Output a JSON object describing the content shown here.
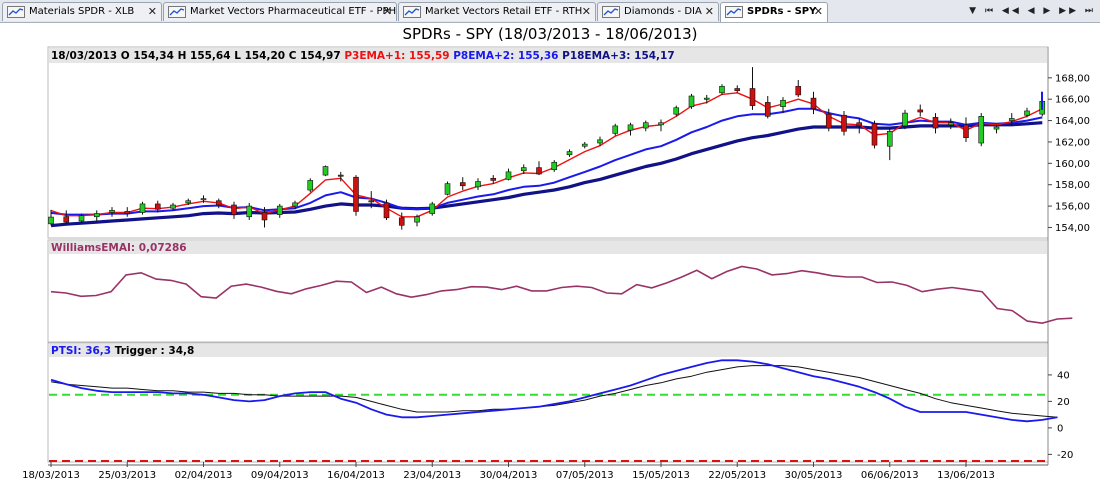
{
  "tabs": [
    {
      "label": "Materials SPDR - XLB",
      "active": false
    },
    {
      "label": "Market Vectors Pharmaceutical ETF - PPH",
      "active": false
    },
    {
      "label": "Market Vectors Retail ETF - RTH",
      "active": false
    },
    {
      "label": "Diamonds - DIA",
      "active": false
    },
    {
      "label": "SPDRs - SPY",
      "active": true
    }
  ],
  "nav_glyphs": "▼ ⏮ ◀◀ ◀ ▶ ▶▶ ⏭",
  "close_glyph": "✕",
  "title": "SPDRs -  SPY     (18/03/2013 - 18/06/2013)",
  "colors": {
    "up": "#22cc22",
    "down": "#cc1111",
    "ema1": "#ee1111",
    "ema2": "#1a1aee",
    "ema3": "#111188",
    "williams": "#993366",
    "ptsi": "#1a1aee",
    "trigger": "#111111",
    "upper_band": "#33dd33",
    "lower_band": "#dd1111",
    "panel_header": "#e6e6e6"
  },
  "chart_data": [
    {
      "type": "candlestick",
      "info": {
        "date": "18/03/2013",
        "o_label": "O :",
        "o_value": "154,34",
        "h_label": "H :",
        "h_value": "155,64",
        "l_label": "L :",
        "l_value": "154,20",
        "c_label": "C :",
        "c_value": "154,97",
        "ema1_label": "P3EMA+1:",
        "ema1_value": "155,59",
        "ema2_label": "P8EMA+2:",
        "ema2_value": "155,36",
        "ema3_label": "P18EMA+3:",
        "ema3_value": "154,17"
      },
      "ylim": [
        153.2,
        169.2
      ],
      "yticks": [
        154,
        156,
        158,
        160,
        162,
        164,
        166,
        168
      ],
      "ytick_labels": [
        "154,00",
        "156,00",
        "158,00",
        "160,00",
        "162,00",
        "164,00",
        "166,00",
        "168,00"
      ],
      "candles": [
        {
          "o": 154.34,
          "h": 155.64,
          "l": 154.2,
          "c": 154.97
        },
        {
          "o": 155.0,
          "h": 155.6,
          "l": 154.3,
          "c": 154.5
        },
        {
          "o": 154.6,
          "h": 155.3,
          "l": 154.4,
          "c": 155.1
        },
        {
          "o": 155.0,
          "h": 155.6,
          "l": 154.6,
          "c": 155.3
        },
        {
          "o": 155.4,
          "h": 155.9,
          "l": 155.0,
          "c": 155.6
        },
        {
          "o": 155.5,
          "h": 155.9,
          "l": 155.0,
          "c": 155.3
        },
        {
          "o": 155.4,
          "h": 156.4,
          "l": 155.2,
          "c": 156.2
        },
        {
          "o": 156.2,
          "h": 156.5,
          "l": 155.4,
          "c": 155.7
        },
        {
          "o": 155.8,
          "h": 156.3,
          "l": 155.6,
          "c": 156.1
        },
        {
          "o": 156.3,
          "h": 156.7,
          "l": 156.1,
          "c": 156.5
        },
        {
          "o": 156.6,
          "h": 157.0,
          "l": 156.3,
          "c": 156.7
        },
        {
          "o": 156.5,
          "h": 156.7,
          "l": 155.8,
          "c": 156.1
        },
        {
          "o": 156.1,
          "h": 156.4,
          "l": 154.8,
          "c": 155.2
        },
        {
          "o": 155.0,
          "h": 156.3,
          "l": 154.7,
          "c": 156.0
        },
        {
          "o": 155.4,
          "h": 155.9,
          "l": 154.0,
          "c": 154.7
        },
        {
          "o": 155.2,
          "h": 156.2,
          "l": 154.9,
          "c": 156.0
        },
        {
          "o": 156.0,
          "h": 156.5,
          "l": 155.7,
          "c": 156.3
        },
        {
          "o": 157.5,
          "h": 158.6,
          "l": 157.3,
          "c": 158.4
        },
        {
          "o": 158.9,
          "h": 159.8,
          "l": 158.8,
          "c": 159.7
        },
        {
          "o": 158.9,
          "h": 159.2,
          "l": 158.3,
          "c": 158.8
        },
        {
          "o": 158.7,
          "h": 158.9,
          "l": 155.1,
          "c": 155.5
        },
        {
          "o": 156.5,
          "h": 157.4,
          "l": 155.8,
          "c": 156.4
        },
        {
          "o": 156.3,
          "h": 156.6,
          "l": 154.7,
          "c": 154.9
        },
        {
          "o": 154.9,
          "h": 155.4,
          "l": 153.8,
          "c": 154.2
        },
        {
          "o": 154.5,
          "h": 155.2,
          "l": 154.1,
          "c": 155.0
        },
        {
          "o": 155.3,
          "h": 156.4,
          "l": 155.1,
          "c": 156.2
        },
        {
          "o": 157.1,
          "h": 158.3,
          "l": 157.0,
          "c": 158.1
        },
        {
          "o": 158.2,
          "h": 158.7,
          "l": 157.5,
          "c": 157.9
        },
        {
          "o": 157.8,
          "h": 158.6,
          "l": 157.5,
          "c": 158.3
        },
        {
          "o": 158.6,
          "h": 158.9,
          "l": 158.1,
          "c": 158.4
        },
        {
          "o": 158.5,
          "h": 159.5,
          "l": 158.4,
          "c": 159.2
        },
        {
          "o": 159.3,
          "h": 159.9,
          "l": 159.0,
          "c": 159.6
        },
        {
          "o": 159.6,
          "h": 160.2,
          "l": 158.9,
          "c": 159.0
        },
        {
          "o": 159.4,
          "h": 160.3,
          "l": 159.2,
          "c": 160.1
        },
        {
          "o": 160.8,
          "h": 161.3,
          "l": 160.6,
          "c": 161.1
        },
        {
          "o": 161.6,
          "h": 162.0,
          "l": 161.4,
          "c": 161.8
        },
        {
          "o": 161.9,
          "h": 162.5,
          "l": 161.6,
          "c": 162.2
        },
        {
          "o": 162.8,
          "h": 163.7,
          "l": 162.6,
          "c": 163.5
        },
        {
          "o": 163.1,
          "h": 163.8,
          "l": 162.6,
          "c": 163.6
        },
        {
          "o": 163.3,
          "h": 164.0,
          "l": 163.0,
          "c": 163.8
        },
        {
          "o": 163.6,
          "h": 164.1,
          "l": 163.0,
          "c": 163.8
        },
        {
          "o": 164.6,
          "h": 165.4,
          "l": 164.4,
          "c": 165.2
        },
        {
          "o": 165.3,
          "h": 166.5,
          "l": 165.1,
          "c": 166.3
        },
        {
          "o": 166.0,
          "h": 166.4,
          "l": 165.6,
          "c": 166.1
        },
        {
          "o": 166.6,
          "h": 167.4,
          "l": 166.4,
          "c": 167.2
        },
        {
          "o": 167.0,
          "h": 167.3,
          "l": 166.6,
          "c": 166.8
        },
        {
          "o": 167.0,
          "h": 169.0,
          "l": 165.0,
          "c": 165.4
        },
        {
          "o": 165.7,
          "h": 166.3,
          "l": 164.2,
          "c": 164.4
        },
        {
          "o": 165.3,
          "h": 166.2,
          "l": 164.7,
          "c": 165.9
        },
        {
          "o": 167.2,
          "h": 167.8,
          "l": 166.2,
          "c": 166.4
        },
        {
          "o": 166.1,
          "h": 166.7,
          "l": 164.6,
          "c": 165.1
        },
        {
          "o": 164.6,
          "h": 165.1,
          "l": 163.0,
          "c": 163.3
        },
        {
          "o": 164.5,
          "h": 164.9,
          "l": 162.6,
          "c": 163.0
        },
        {
          "o": 163.8,
          "h": 164.2,
          "l": 162.8,
          "c": 163.5
        },
        {
          "o": 163.7,
          "h": 164.0,
          "l": 161.4,
          "c": 161.7
        },
        {
          "o": 161.6,
          "h": 163.3,
          "l": 160.3,
          "c": 163.0
        },
        {
          "o": 163.5,
          "h": 165.0,
          "l": 163.2,
          "c": 164.7
        },
        {
          "o": 165.0,
          "h": 165.5,
          "l": 164.4,
          "c": 164.8
        },
        {
          "o": 164.3,
          "h": 164.7,
          "l": 162.8,
          "c": 163.3
        },
        {
          "o": 163.6,
          "h": 164.2,
          "l": 163.2,
          "c": 163.8
        },
        {
          "o": 163.6,
          "h": 164.3,
          "l": 162.0,
          "c": 162.4
        },
        {
          "o": 161.9,
          "h": 164.7,
          "l": 161.6,
          "c": 164.4
        },
        {
          "o": 163.2,
          "h": 163.6,
          "l": 162.8,
          "c": 163.4
        },
        {
          "o": 164.0,
          "h": 164.7,
          "l": 163.5,
          "c": 164.2
        },
        {
          "o": 164.5,
          "h": 165.2,
          "l": 164.3,
          "c": 164.9
        },
        {
          "o": 164.6,
          "h": 166.0,
          "l": 164.4,
          "c": 165.8
        }
      ],
      "ema1": [
        155.59,
        155.1,
        155.1,
        155.2,
        155.4,
        155.4,
        155.8,
        155.75,
        155.9,
        156.2,
        156.45,
        156.3,
        155.75,
        155.9,
        155.3,
        155.65,
        156.0,
        157.2,
        158.45,
        158.6,
        157.05,
        156.7,
        155.8,
        155.0,
        155.0,
        155.6,
        156.85,
        157.4,
        157.85,
        158.1,
        158.65,
        159.1,
        159.05,
        159.6,
        160.35,
        161.1,
        161.65,
        162.55,
        163.1,
        163.45,
        163.6,
        164.4,
        165.35,
        165.7,
        166.45,
        166.6,
        166.0,
        165.2,
        165.55,
        166.0,
        165.55,
        164.4,
        163.7,
        163.6,
        162.65,
        162.8,
        163.75,
        164.3,
        163.8,
        163.8,
        163.1,
        163.75,
        163.6,
        163.9,
        164.4,
        165.1
      ],
      "ema2": [
        155.36,
        155.2,
        155.2,
        155.2,
        155.3,
        155.3,
        155.5,
        155.5,
        155.6,
        155.8,
        156.0,
        156.05,
        155.85,
        155.9,
        155.6,
        155.7,
        155.8,
        156.3,
        157.0,
        157.3,
        156.8,
        156.7,
        156.3,
        155.8,
        155.7,
        155.8,
        156.3,
        156.6,
        156.9,
        157.1,
        157.5,
        157.8,
        157.9,
        158.2,
        158.7,
        159.2,
        159.7,
        160.3,
        160.8,
        161.3,
        161.6,
        162.2,
        162.9,
        163.4,
        164.0,
        164.4,
        164.6,
        164.6,
        164.8,
        165.1,
        165.1,
        164.7,
        164.4,
        164.2,
        163.7,
        163.6,
        163.8,
        164.0,
        163.9,
        163.9,
        163.6,
        163.8,
        163.7,
        163.8,
        164.0,
        164.3
      ],
      "ema3": [
        154.17,
        154.3,
        154.4,
        154.5,
        154.6,
        154.7,
        154.8,
        154.9,
        155.0,
        155.1,
        155.3,
        155.35,
        155.3,
        155.4,
        155.35,
        155.4,
        155.45,
        155.7,
        156.0,
        156.2,
        156.1,
        156.1,
        156.0,
        155.8,
        155.75,
        155.8,
        156.0,
        156.2,
        156.4,
        156.6,
        156.8,
        157.1,
        157.3,
        157.5,
        157.8,
        158.2,
        158.5,
        158.9,
        159.3,
        159.7,
        160.0,
        160.4,
        160.9,
        161.3,
        161.7,
        162.1,
        162.4,
        162.6,
        162.9,
        163.2,
        163.4,
        163.4,
        163.4,
        163.4,
        163.3,
        163.3,
        163.4,
        163.5,
        163.5,
        163.5,
        163.5,
        163.6,
        163.6,
        163.6,
        163.7,
        163.8
      ],
      "extra_bar": {
        "value": 166.2,
        "low": 165.0,
        "high": 166.7
      }
    },
    {
      "type": "line",
      "indicator_label": "WilliamsEMAI:",
      "indicator_value": "0,07286",
      "ylim": [
        -1,
        1
      ],
      "values": [
        0.15,
        0.12,
        0.04,
        0.06,
        0.15,
        0.55,
        0.6,
        0.45,
        0.42,
        0.33,
        0.03,
        0.0,
        0.28,
        0.33,
        0.26,
        0.16,
        0.1,
        0.22,
        0.3,
        0.4,
        0.38,
        0.13,
        0.26,
        0.1,
        0.02,
        0.08,
        0.17,
        0.2,
        0.27,
        0.26,
        0.2,
        0.28,
        0.17,
        0.17,
        0.25,
        0.28,
        0.25,
        0.12,
        0.1,
        0.32,
        0.24,
        0.36,
        0.5,
        0.66,
        0.46,
        0.63,
        0.75,
        0.69,
        0.55,
        0.58,
        0.65,
        0.6,
        0.53,
        0.5,
        0.5,
        0.37,
        0.38,
        0.3,
        0.15,
        0.21,
        0.25,
        0.2,
        0.15,
        -0.25,
        -0.3,
        -0.55,
        -0.6,
        -0.5,
        -0.48
      ]
    },
    {
      "type": "line",
      "ptsi_label": "PTSI:",
      "ptsi_value": "36,3",
      "trigger_label": "Trigger :",
      "trigger_value": "34,8",
      "ylim": [
        -25,
        52
      ],
      "yticks": [
        -20,
        0,
        20,
        40
      ],
      "ytick_labels": [
        "-20",
        "0",
        "20",
        "40"
      ],
      "upper_band": 25,
      "lower_band": -25,
      "ptsi": [
        36.3,
        33,
        30,
        28,
        27,
        27,
        27,
        27,
        26,
        26,
        25,
        23,
        21,
        20,
        21,
        24,
        26,
        27,
        27,
        22,
        19,
        14,
        10,
        8,
        8,
        9,
        10,
        11,
        12,
        13,
        14,
        15,
        16,
        18,
        20,
        23,
        26,
        29,
        32,
        36,
        40,
        43,
        46,
        49,
        51,
        51,
        50,
        48,
        45,
        42,
        39,
        37,
        34,
        31,
        27,
        22,
        16,
        12,
        12,
        12,
        12,
        10,
        8,
        6,
        5,
        6,
        8
      ],
      "trigger": [
        34.8,
        33,
        32,
        31,
        30,
        30,
        29,
        28,
        28,
        27,
        27,
        26,
        26,
        25,
        25,
        24,
        24,
        24,
        24,
        24,
        23,
        20,
        17,
        14,
        12,
        12,
        12,
        13,
        13,
        14,
        14,
        15,
        16,
        17,
        19,
        21,
        24,
        26,
        29,
        32,
        34,
        37,
        39,
        42,
        44,
        46,
        47,
        47,
        47,
        46,
        44,
        42,
        40,
        38,
        35,
        32,
        29,
        26,
        22,
        19,
        17,
        15,
        13,
        11,
        10,
        9,
        8
      ]
    }
  ],
  "x_axis": {
    "ticks": [
      {
        "index": 0,
        "label": "18/03/2013"
      },
      {
        "index": 5,
        "label": "25/03/2013"
      },
      {
        "index": 10,
        "label": "02/04/2013"
      },
      {
        "index": 15,
        "label": "09/04/2013"
      },
      {
        "index": 20,
        "label": "16/04/2013"
      },
      {
        "index": 25,
        "label": "23/04/2013"
      },
      {
        "index": 30,
        "label": "30/04/2013"
      },
      {
        "index": 35,
        "label": "07/05/2013"
      },
      {
        "index": 40,
        "label": "15/05/2013"
      },
      {
        "index": 45,
        "label": "22/05/2013"
      },
      {
        "index": 50,
        "label": "30/05/2013"
      },
      {
        "index": 55,
        "label": "06/06/2013"
      },
      {
        "index": 60,
        "label": "13/06/2013"
      }
    ]
  }
}
